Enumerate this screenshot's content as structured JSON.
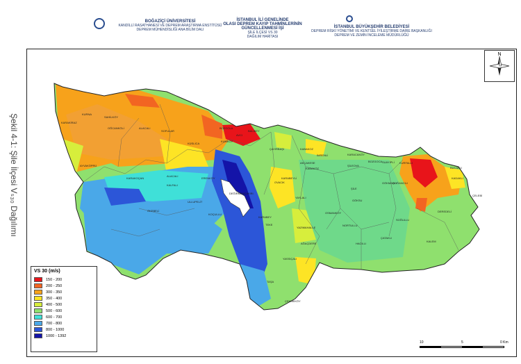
{
  "side_caption": "Şekil 4-1: Şile İlçesi Vₛ₃₀ Dağılımı",
  "header": {
    "left_title": "BOĞAZİÇİ ÜNİVERSİTESİ",
    "left_sub1": "KANDİLLİ RASATHANESİ VE DEPREM ARAŞTIRMA ENSTİTÜSÜ",
    "left_sub2": "DEPREM MÜHENDİSLİĞİ ANA BİLİM DALI",
    "center_line1": "İSTANBUL İLİ GENELİNDE",
    "center_line2": "OLASI DEPREM KAYIP TAHMİNLERİNİN",
    "center_line3": "GÜNCELLENMESİ İŞİ",
    "center_line4": "ŞİLE İLÇESİ VS 30",
    "center_line5": "DAĞILIM HARİTASI",
    "right_title": "İSTANBUL BÜYÜKŞEHİR BELEDİYESİ",
    "right_sub1": "DEPREM RİSKİ YÖNETİMİ VE KENTSEL İYİLEŞTİRME DAİRE BAŞKANLIĞI",
    "right_sub2": "DEPREM VE ZEMİN İNCELEME MÜDÜRLÜĞÜ"
  },
  "legend": {
    "title": "VS 30 (m/s)",
    "items": [
      {
        "label": "150 - 200",
        "color": "#e8141a"
      },
      {
        "label": "200 - 250",
        "color": "#f26522"
      },
      {
        "label": "300 - 350",
        "color": "#f7a21b"
      },
      {
        "label": "350 - 400",
        "color": "#fde425"
      },
      {
        "label": "400 - 500",
        "color": "#d7ee3c"
      },
      {
        "label": "500 - 600",
        "color": "#8fe06e"
      },
      {
        "label": "600 - 700",
        "color": "#3fe0d8"
      },
      {
        "label": "700 - 800",
        "color": "#4aa8e8"
      },
      {
        "label": "800 - 1000",
        "color": "#2c56d8"
      },
      {
        "label": "1000 - 1392",
        "color": "#1414a8"
      }
    ]
  },
  "north_label": "N",
  "scale": {
    "labels": [
      "10",
      "5",
      "0 Km"
    ]
  },
  "places": [
    "KURNA",
    "KARAKİRAZ",
    "SAHİLKÖY",
    "OĞCANKÖLİ",
    "ALACALI",
    "SOFULAR",
    "KÜSLİCA",
    "AYVAKÖPRÜ",
    "BOZGOLA",
    "AVCI",
    "KUMKÖY",
    "BALIBEY",
    "ŞİLE",
    "ÇAYIRBAŞI",
    "KABAKOZ",
    "İMRENLİ",
    "KARACAKÖY",
    "AKÇAKESE",
    "BOZGOCA",
    "SUAYİPLİ",
    "KURFALLI",
    "BUCAKLI",
    "KADAKLI",
    "ÇELEBİ",
    "OVACIK",
    "KARABEYLİ",
    "DOĞANCILI",
    "YAYLALI",
    "GÖKSU",
    "OSMANKÖY",
    "NORTULLU",
    "SOĞULLU",
    "DEREDELİ",
    "ÇATAKLI",
    "KALEM",
    "YAZIMAHALLE",
    "AĞAÇDERE",
    "HACILLI",
    "TEKE",
    "YASSIÇALI",
    "KARABEY",
    "TAŞA",
    "ÇEKMEKÖY",
    "ÖKEBELİ",
    "KARAKOÇAN",
    "ERENKÖY",
    "KALFALI",
    "ALACALI",
    "ULLUPELİT",
    "KOÇULLU",
    "DEĞİRMENÇAYIRI",
    "ŞİLEOVA",
    "KABAKÖZ",
    "GÖKMAŞLI"
  ]
}
